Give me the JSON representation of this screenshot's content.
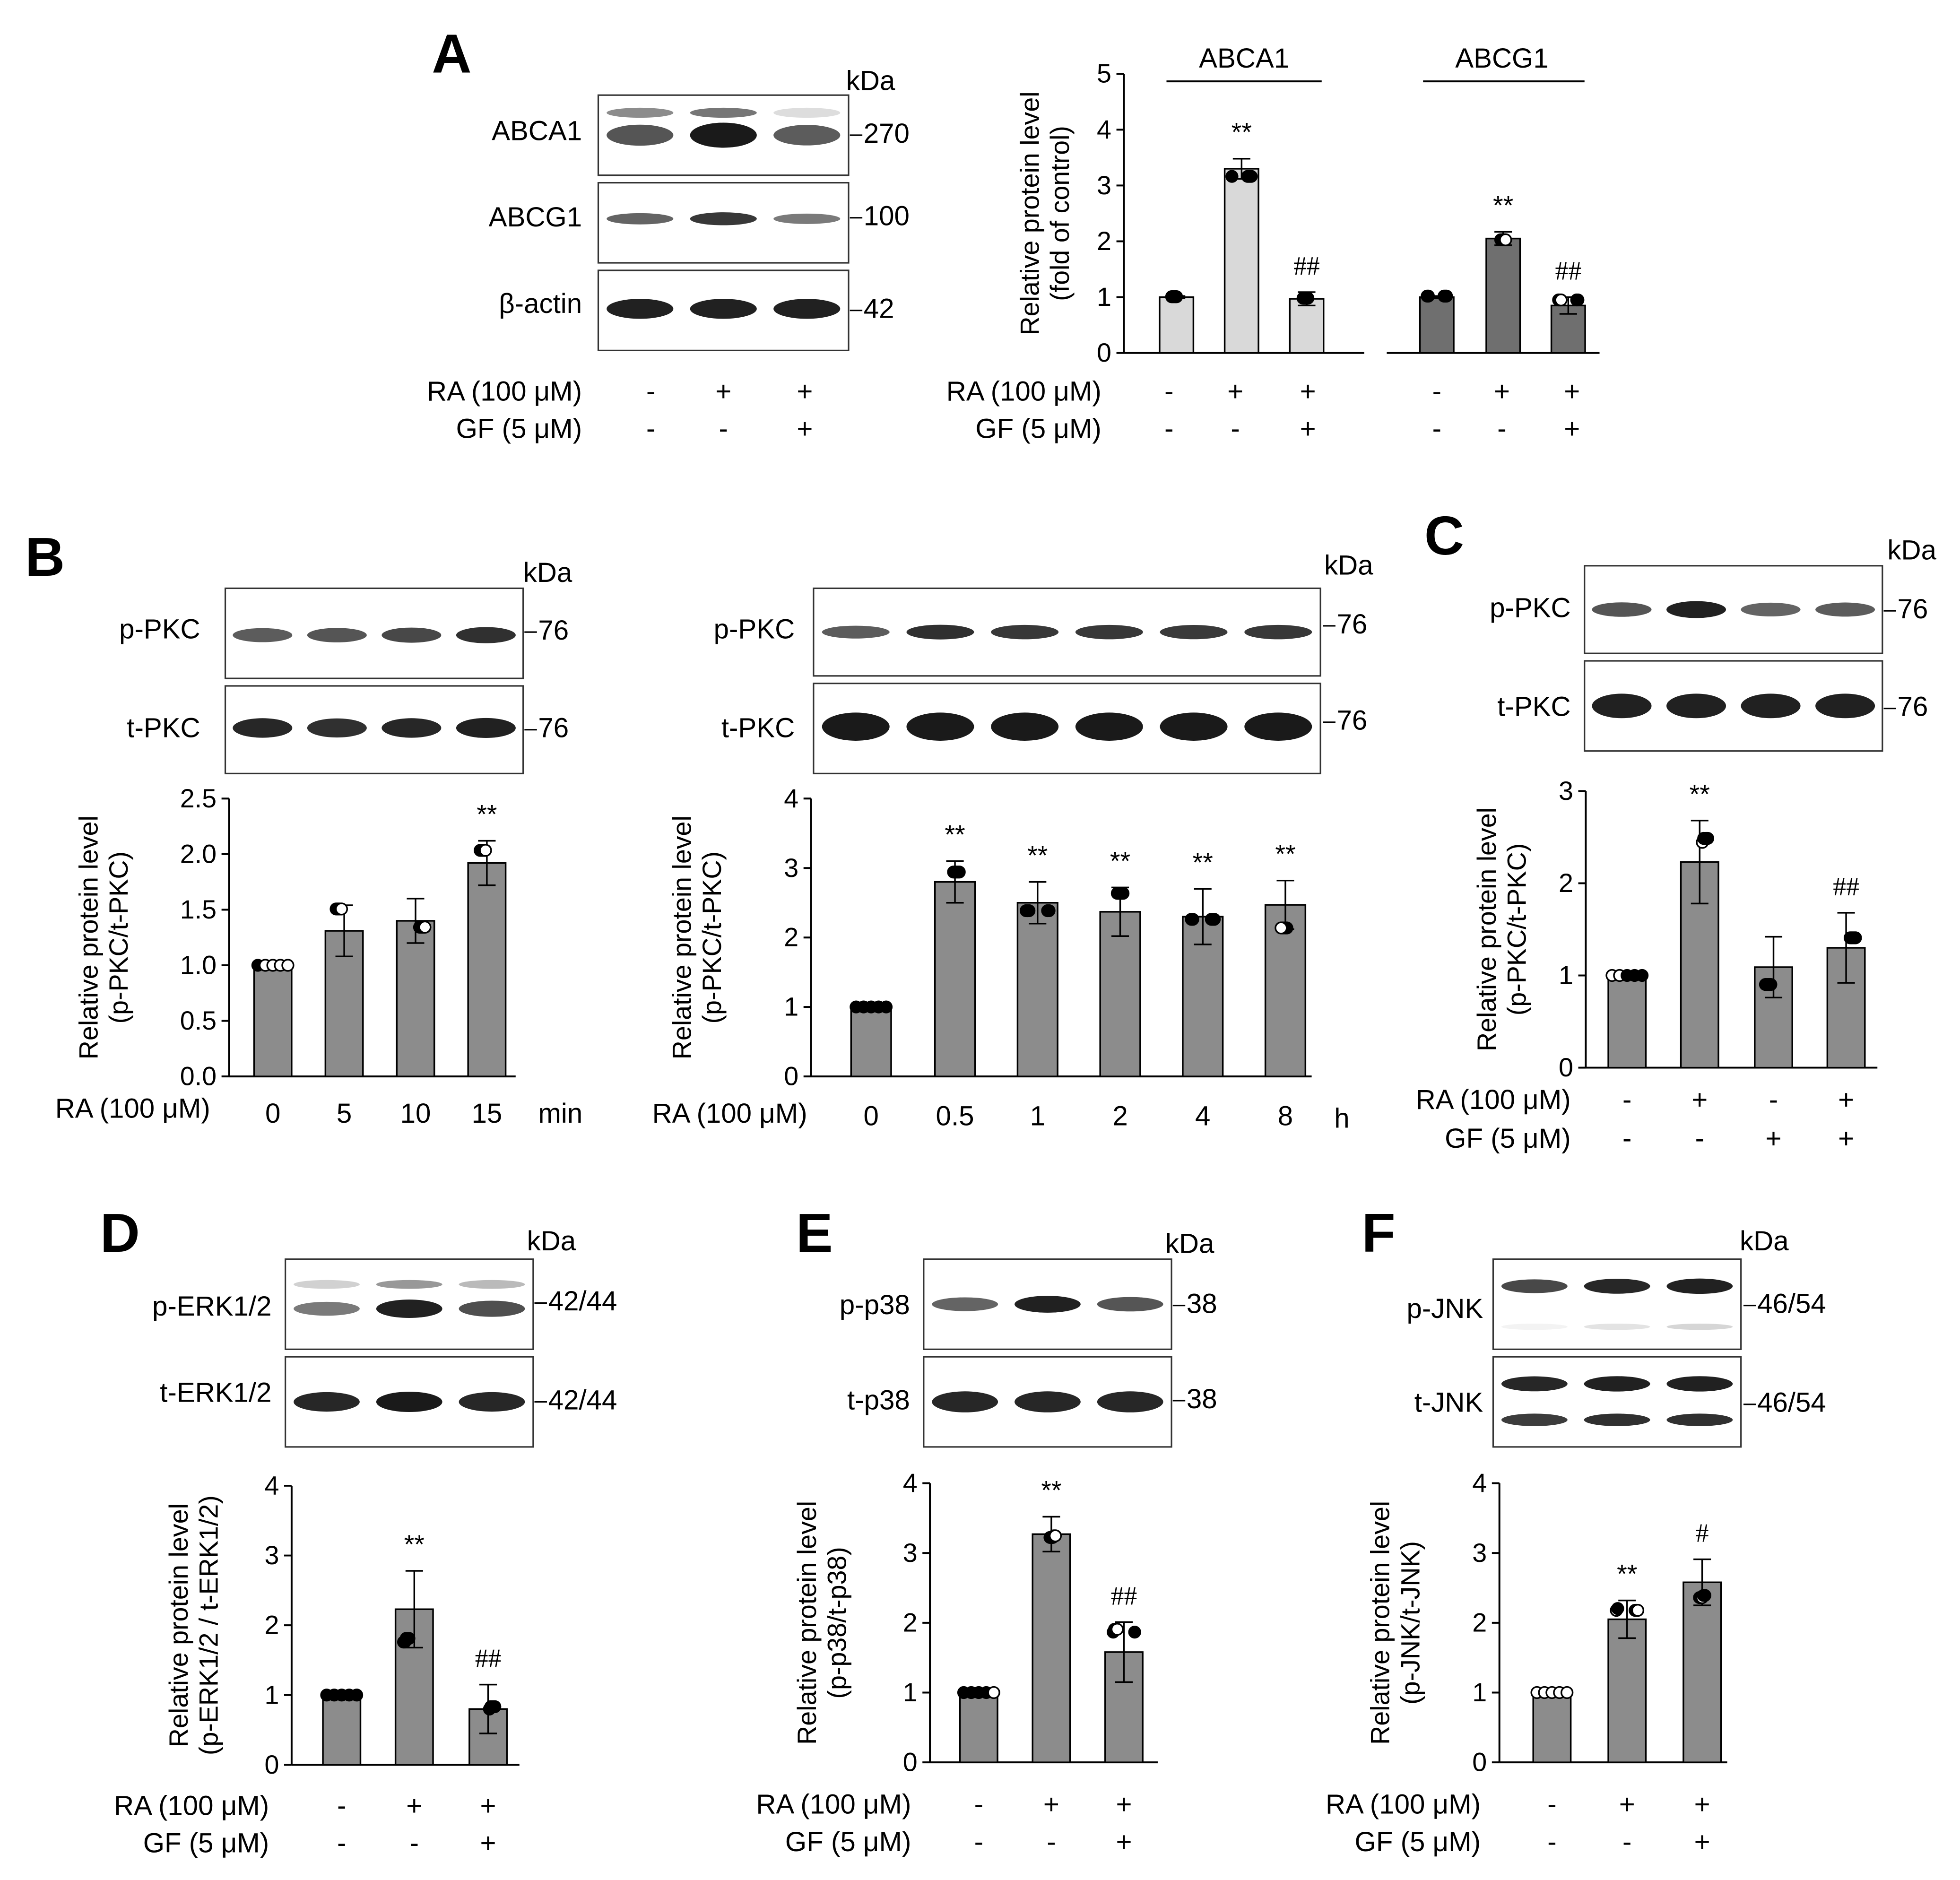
{
  "colors": {
    "bar_gray": "#8c8c8c",
    "bar_light": "#d9d9d9",
    "bar_dark": "#6f6f6f",
    "band": "#1a1a1a",
    "axis": "#000000"
  },
  "kda_label": "kDa",
  "treatment_labels": {
    "ra": "RA (100 μM)",
    "gf": "GF (5 μM)"
  },
  "panels": {
    "A": {
      "letter": "A",
      "blot_labels": [
        "ABCA1",
        "ABCG1",
        "β-actin"
      ],
      "blot_mw": [
        "270",
        "100",
        "42"
      ],
      "ra_signs": [
        "-",
        "+",
        "+"
      ],
      "gf_signs": [
        "-",
        "-",
        "+"
      ]
    },
    "B": {
      "letter": "B",
      "left": {
        "blot_labels": [
          "p-PKC",
          "t-PKC"
        ],
        "blot_mw": [
          "76",
          "76"
        ],
        "x_unit": "min"
      },
      "right": {
        "blot_labels": [
          "p-PKC",
          "t-PKC"
        ],
        "blot_mw": [
          "76",
          "76"
        ],
        "x_unit": "h"
      }
    },
    "C": {
      "letter": "C",
      "blot_labels": [
        "p-PKC",
        "t-PKC"
      ],
      "blot_mw": [
        "76",
        "76"
      ],
      "ra_signs": [
        "-",
        "+",
        "-",
        "+"
      ],
      "gf_signs": [
        "-",
        "-",
        "+",
        "+"
      ]
    },
    "D": {
      "letter": "D",
      "blot_labels": [
        "p-ERK1/2",
        "t-ERK1/2"
      ],
      "blot_mw": [
        "42/44",
        "42/44"
      ],
      "ra_signs": [
        "-",
        "+",
        "+"
      ],
      "gf_signs": [
        "-",
        "-",
        "+"
      ]
    },
    "E": {
      "letter": "E",
      "blot_labels": [
        "p-p38",
        "t-p38"
      ],
      "blot_mw": [
        "38",
        "38"
      ],
      "ra_signs": [
        "-",
        "+",
        "+"
      ],
      "gf_signs": [
        "-",
        "-",
        "+"
      ]
    },
    "F": {
      "letter": "F",
      "blot_labels": [
        "p-JNK",
        "t-JNK"
      ],
      "blot_mw": [
        "46/54",
        "46/54"
      ],
      "ra_signs": [
        "-",
        "+",
        "+"
      ],
      "gf_signs": [
        "-",
        "-",
        "+"
      ]
    }
  },
  "chart_data": [
    {
      "id": "A",
      "type": "bar",
      "ylabel": [
        "Relative protein level",
        "(fold of control)"
      ],
      "ylim": [
        0,
        5
      ],
      "yticks": [
        "0",
        "1",
        "2",
        "3",
        "4",
        "5"
      ],
      "groups": [
        {
          "name": "ABCA1",
          "values": [
            1.0,
            3.3,
            0.97
          ],
          "errors": [
            0.02,
            0.18,
            0.12
          ],
          "sig": [
            "",
            "**",
            "##"
          ]
        },
        {
          "name": "ABCG1",
          "values": [
            1.0,
            2.05,
            0.85
          ],
          "errors": [
            0.02,
            0.12,
            0.15
          ],
          "sig": [
            "",
            "**",
            "##"
          ]
        }
      ]
    },
    {
      "id": "B-left",
      "type": "bar",
      "ylabel": [
        "Relative protein level",
        "(p-PKC/t-PKC)"
      ],
      "ylim": [
        0,
        2.5
      ],
      "yticks": [
        "0.0",
        "0.5",
        "1.0",
        "1.5",
        "2.0",
        "2.5"
      ],
      "categories": [
        "0",
        "5",
        "10",
        "15"
      ],
      "values": [
        1.0,
        1.31,
        1.4,
        1.92
      ],
      "errors": [
        0.0,
        0.23,
        0.2,
        0.2
      ],
      "sig": [
        "",
        "",
        "",
        "**"
      ]
    },
    {
      "id": "B-right",
      "type": "bar",
      "ylabel": [
        "Relative protein level",
        "(p-PKC/t-PKC)"
      ],
      "ylim": [
        0,
        4
      ],
      "yticks": [
        "0",
        "1",
        "2",
        "3",
        "4"
      ],
      "categories": [
        "0",
        "0.5",
        "1",
        "2",
        "4",
        "8"
      ],
      "values": [
        1.0,
        2.8,
        2.5,
        2.37,
        2.3,
        2.47
      ],
      "errors": [
        0.0,
        0.3,
        0.3,
        0.35,
        0.4,
        0.35
      ],
      "sig": [
        "",
        "**",
        "**",
        "**",
        "**",
        "**"
      ]
    },
    {
      "id": "C",
      "type": "bar",
      "ylabel": [
        "Relative protein level",
        "(p-PKC/t-PKC)"
      ],
      "ylim": [
        0,
        3
      ],
      "yticks": [
        "0",
        "1",
        "2",
        "3"
      ],
      "values": [
        1.0,
        2.23,
        1.09,
        1.3
      ],
      "errors": [
        0.0,
        0.45,
        0.33,
        0.38
      ],
      "sig": [
        "",
        "**",
        "",
        "##"
      ]
    },
    {
      "id": "D",
      "type": "bar",
      "ylabel": [
        "Relative protein level",
        "(p-ERK1/2 / t-ERK1/2)"
      ],
      "ylim": [
        0,
        4
      ],
      "yticks": [
        "0",
        "1",
        "2",
        "3",
        "4"
      ],
      "values": [
        1.0,
        2.23,
        0.8
      ],
      "errors": [
        0.0,
        0.55,
        0.35
      ],
      "sig": [
        "",
        "**",
        "##"
      ]
    },
    {
      "id": "E",
      "type": "bar",
      "ylabel": [
        "Relative protein level",
        "(p-p38/t-p38)"
      ],
      "ylim": [
        0,
        4
      ],
      "yticks": [
        "0",
        "1",
        "2",
        "3",
        "4"
      ],
      "values": [
        1.0,
        3.27,
        1.58
      ],
      "errors": [
        0.0,
        0.25,
        0.43
      ],
      "sig": [
        "",
        "**",
        "##"
      ]
    },
    {
      "id": "F",
      "type": "bar",
      "ylabel": [
        "Relative protein level",
        "(p-JNK/t-JNK)"
      ],
      "ylim": [
        0,
        4
      ],
      "yticks": [
        "0",
        "1",
        "2",
        "3",
        "4"
      ],
      "values": [
        1.0,
        2.05,
        2.58
      ],
      "errors": [
        0.0,
        0.27,
        0.33
      ],
      "sig": [
        "",
        "**",
        "#"
      ]
    }
  ]
}
